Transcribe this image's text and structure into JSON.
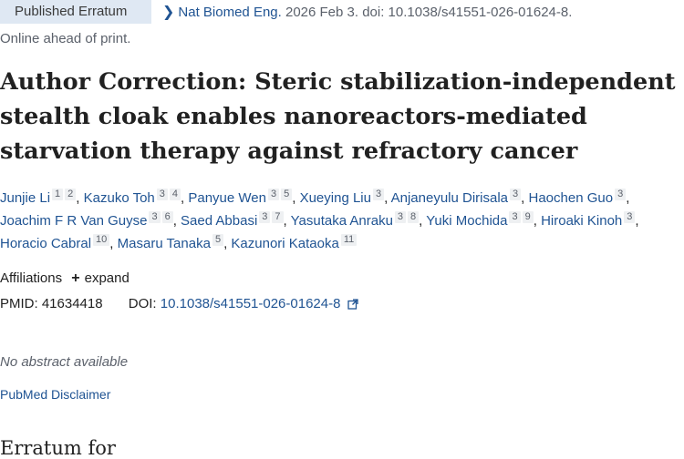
{
  "header": {
    "badge": "Published Erratum",
    "journal": "Nat Biomed Eng.",
    "citation_rest": " 2026 Feb 3. doi: 10.1038/s41551-026-01624-8.",
    "status": "Online ahead of print."
  },
  "title": "Author Correction: Steric stabilization-independent stealth cloak enables nanoreactors-mediated starvation therapy against refractory cancer",
  "authors": [
    {
      "name": "Junjie Li",
      "aff": [
        "1",
        "2"
      ]
    },
    {
      "name": "Kazuko Toh",
      "aff": [
        "3",
        "4"
      ]
    },
    {
      "name": "Panyue Wen",
      "aff": [
        "3",
        "5"
      ]
    },
    {
      "name": "Xueying Liu",
      "aff": [
        "3"
      ]
    },
    {
      "name": "Anjaneyulu Dirisala",
      "aff": [
        "3"
      ]
    },
    {
      "name": "Haochen Guo",
      "aff": [
        "3"
      ]
    },
    {
      "name": "Joachim F R Van Guyse",
      "aff": [
        "3",
        "6"
      ]
    },
    {
      "name": "Saed Abbasi",
      "aff": [
        "3",
        "7"
      ]
    },
    {
      "name": "Yasutaka Anraku",
      "aff": [
        "3",
        "8"
      ]
    },
    {
      "name": "Yuki Mochida",
      "aff": [
        "3",
        "9"
      ]
    },
    {
      "name": "Hiroaki Kinoh",
      "aff": [
        "3"
      ]
    },
    {
      "name": "Horacio Cabral",
      "aff": [
        "10"
      ]
    },
    {
      "name": "Masaru Tanaka",
      "aff": [
        "5"
      ]
    },
    {
      "name": "Kazunori Kataoka",
      "aff": [
        "11"
      ]
    }
  ],
  "affiliations": {
    "label": "Affiliations",
    "toggle": "expand"
  },
  "ids": {
    "pmid_label": "PMID:",
    "pmid": "41634418",
    "doi_label": "DOI:",
    "doi": "10.1038/s41551-026-01624-8"
  },
  "abstract": {
    "empty": "No abstract available"
  },
  "disclaimer": "PubMed Disclaimer",
  "erratum_heading": "Erratum for",
  "colors": {
    "link": "#205493",
    "badge_bg": "#dfe8f3",
    "sup_bg": "#eef0f2"
  },
  "icons": [
    "chevron-right-icon",
    "plus-icon",
    "external-link-icon"
  ]
}
